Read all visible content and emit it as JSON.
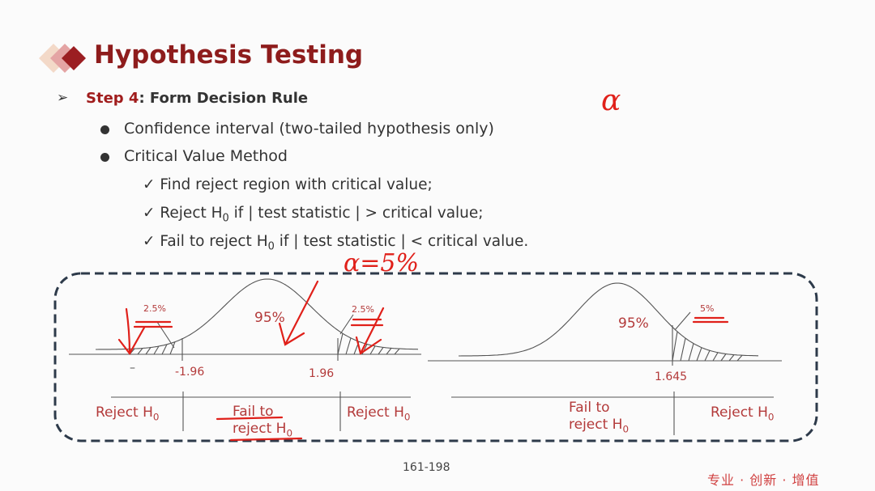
{
  "slide": {
    "title": "Hypothesis Testing",
    "step_label": "Step 4",
    "step_title": ": Form Decision Rule",
    "bullets": [
      "Confidence interval (two-tailed hypothesis only)",
      "Critical Value Method"
    ],
    "checks": [
      {
        "pre": "Find reject region with critical value;",
        "sub": "",
        "post": ""
      },
      {
        "pre": "Reject H",
        "sub": "0",
        "post": " if | test statistic | > critical value;"
      },
      {
        "pre": "Fail to reject H",
        "sub": "0",
        "post": " if | test statistic | < critical value."
      }
    ],
    "page_number": "161-198",
    "footer": "专业 · 创新 · 增值"
  },
  "two_tailed": {
    "tail_left_pct": "2.5%",
    "tail_right_pct": "2.5%",
    "center_pct": "95%",
    "crit_left": "-1.96",
    "crit_right": "1.96",
    "minus_mark": "–",
    "region_left": "Reject H",
    "region_middle_1": "Fail to",
    "region_middle_2": "reject H",
    "region_right": "Reject H",
    "sub": "0"
  },
  "one_tailed": {
    "tail_pct": "5%",
    "center_pct": "95%",
    "crit": "1.645",
    "region_left_1": "Fail to",
    "region_left_2": "reject H",
    "region_right": "Reject H",
    "sub": "0"
  },
  "annotations": {
    "alpha": "α",
    "alpha_eq": "α=5%"
  },
  "colors": {
    "title": "#8e1c1c",
    "label_red": "#b33a3a",
    "ink": "#e0201a",
    "box_border": "#2d3a4a"
  }
}
